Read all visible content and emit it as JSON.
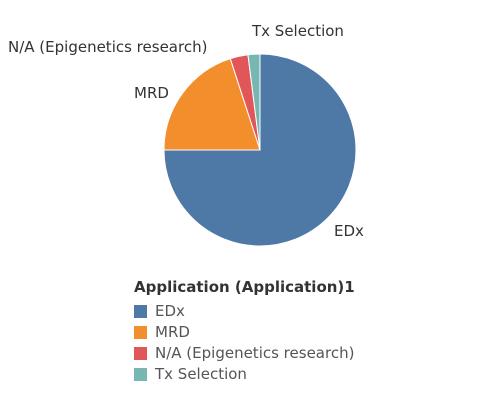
{
  "chart_data": {
    "type": "pie",
    "categories": [
      "EDx",
      "MRD",
      "N/A (Epigenetics research)",
      "Tx Selection"
    ],
    "values": [
      75,
      20,
      3,
      2
    ],
    "colors": [
      "#4e79a7",
      "#f28e2b",
      "#e15759",
      "#76b7b2"
    ],
    "legend": {
      "title": "Application (Application)1",
      "placement": "bottom-left"
    }
  }
}
